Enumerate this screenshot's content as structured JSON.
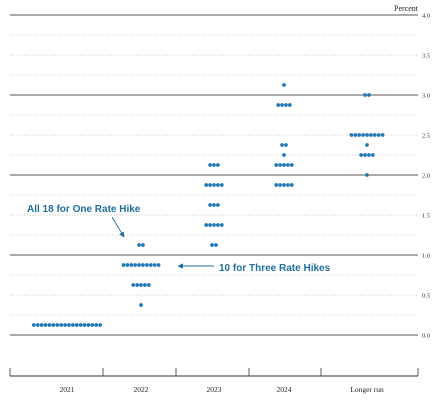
{
  "chart_data": {
    "type": "scatter",
    "title": "",
    "ylabel": "Percent",
    "xlabel": "",
    "ylim": [
      0,
      4.0
    ],
    "y_ticks": [
      "0.0",
      "0.5",
      "1.0",
      "1.5",
      "2.0",
      "2.5",
      "3.0",
      "3.5",
      "4.0"
    ],
    "categories": [
      "2021",
      "2022",
      "2023",
      "2024",
      "Longer run"
    ],
    "dot_color": "#1f77b4",
    "annotation_color": "#1f6f9f",
    "series": [
      {
        "category": "2021",
        "points": [
          {
            "y": 0.125,
            "count": 18
          }
        ]
      },
      {
        "category": "2022",
        "points": [
          {
            "y": 0.375,
            "count": 1
          },
          {
            "y": 0.625,
            "count": 5
          },
          {
            "y": 0.875,
            "count": 10
          },
          {
            "y": 1.125,
            "count": 2
          }
        ]
      },
      {
        "category": "2023",
        "points": [
          {
            "y": 1.125,
            "count": 2
          },
          {
            "y": 1.375,
            "count": 5
          },
          {
            "y": 1.625,
            "count": 3
          },
          {
            "y": 1.875,
            "count": 5
          },
          {
            "y": 2.125,
            "count": 3
          }
        ]
      },
      {
        "category": "2024",
        "points": [
          {
            "y": 1.875,
            "count": 5
          },
          {
            "y": 2.125,
            "count": 5
          },
          {
            "y": 2.25,
            "count": 1
          },
          {
            "y": 2.375,
            "count": 2
          },
          {
            "y": 2.875,
            "count": 4
          },
          {
            "y": 3.125,
            "count": 1
          }
        ]
      },
      {
        "category": "Longer run",
        "points": [
          {
            "y": 2.0,
            "count": 1
          },
          {
            "y": 2.25,
            "count": 4
          },
          {
            "y": 2.375,
            "count": 1
          },
          {
            "y": 2.5,
            "count": 9
          },
          {
            "y": 3.0,
            "count": 2
          }
        ]
      }
    ],
    "annotations": [
      {
        "text": "All 18 for One Rate Hike",
        "target_category": "2022",
        "target_y": 1.125
      },
      {
        "text": "10 for Three Rate Hikes",
        "target_category": "2022",
        "target_y": 0.875
      }
    ]
  }
}
